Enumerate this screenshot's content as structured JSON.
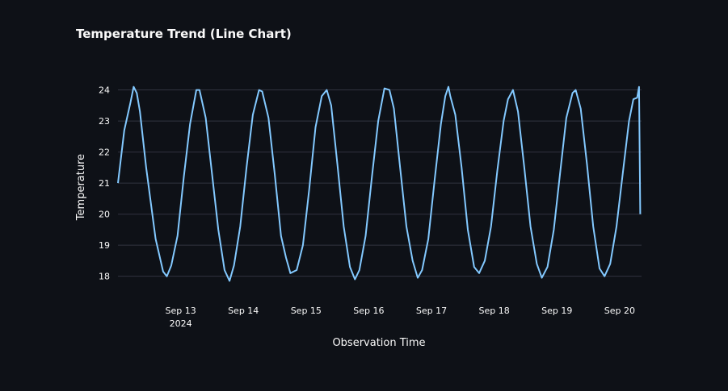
{
  "chart_data": {
    "type": "line",
    "title": "Temperature Trend (Line Chart)",
    "xlabel": "Observation Time",
    "ylabel": "Temperature",
    "ylim": [
      17.55,
      24.3
    ],
    "y_ticks": [
      18,
      19,
      20,
      21,
      22,
      23,
      24
    ],
    "x_range_days": [
      12.0,
      20.35
    ],
    "x_ticks": [
      {
        "day": 13,
        "label": "Sep 13",
        "sublabel": "2024"
      },
      {
        "day": 14,
        "label": "Sep 14",
        "sublabel": ""
      },
      {
        "day": 15,
        "label": "Sep 15",
        "sublabel": ""
      },
      {
        "day": 16,
        "label": "Sep 16",
        "sublabel": ""
      },
      {
        "day": 17,
        "label": "Sep 17",
        "sublabel": ""
      },
      {
        "day": 18,
        "label": "Sep 18",
        "sublabel": ""
      },
      {
        "day": 19,
        "label": "Sep 19",
        "sublabel": ""
      },
      {
        "day": 20,
        "label": "Sep 20",
        "sublabel": ""
      }
    ],
    "grid": true,
    "line_color": "#83c9ff",
    "series": [
      {
        "name": "Temperature",
        "points": [
          [
            12.0,
            21.0
          ],
          [
            12.1,
            22.7
          ],
          [
            12.2,
            23.6
          ],
          [
            12.25,
            24.1
          ],
          [
            12.3,
            23.9
          ],
          [
            12.35,
            23.3
          ],
          [
            12.45,
            21.5
          ],
          [
            12.6,
            19.2
          ],
          [
            12.72,
            18.15
          ],
          [
            12.78,
            18.0
          ],
          [
            12.85,
            18.35
          ],
          [
            12.95,
            19.3
          ],
          [
            13.05,
            21.2
          ],
          [
            13.15,
            22.9
          ],
          [
            13.25,
            24.0
          ],
          [
            13.3,
            24.0
          ],
          [
            13.4,
            23.1
          ],
          [
            13.5,
            21.3
          ],
          [
            13.6,
            19.5
          ],
          [
            13.7,
            18.2
          ],
          [
            13.78,
            17.85
          ],
          [
            13.85,
            18.35
          ],
          [
            13.95,
            19.6
          ],
          [
            14.05,
            21.5
          ],
          [
            14.15,
            23.2
          ],
          [
            14.25,
            24.0
          ],
          [
            14.3,
            23.95
          ],
          [
            14.4,
            23.1
          ],
          [
            14.5,
            21.3
          ],
          [
            14.6,
            19.3
          ],
          [
            14.68,
            18.6
          ],
          [
            14.75,
            18.1
          ],
          [
            14.85,
            18.2
          ],
          [
            14.95,
            19.0
          ],
          [
            15.05,
            20.8
          ],
          [
            15.15,
            22.8
          ],
          [
            15.25,
            23.8
          ],
          [
            15.33,
            24.0
          ],
          [
            15.4,
            23.5
          ],
          [
            15.5,
            21.6
          ],
          [
            15.6,
            19.6
          ],
          [
            15.7,
            18.3
          ],
          [
            15.78,
            17.9
          ],
          [
            15.85,
            18.2
          ],
          [
            15.95,
            19.3
          ],
          [
            16.05,
            21.2
          ],
          [
            16.15,
            23.0
          ],
          [
            16.25,
            24.05
          ],
          [
            16.33,
            24.0
          ],
          [
            16.4,
            23.4
          ],
          [
            16.5,
            21.5
          ],
          [
            16.6,
            19.6
          ],
          [
            16.7,
            18.5
          ],
          [
            16.78,
            17.95
          ],
          [
            16.85,
            18.2
          ],
          [
            16.95,
            19.2
          ],
          [
            17.05,
            21.1
          ],
          [
            17.15,
            22.9
          ],
          [
            17.22,
            23.8
          ],
          [
            17.27,
            24.1
          ],
          [
            17.3,
            23.8
          ],
          [
            17.38,
            23.2
          ],
          [
            17.48,
            21.5
          ],
          [
            17.58,
            19.5
          ],
          [
            17.68,
            18.3
          ],
          [
            17.76,
            18.1
          ],
          [
            17.85,
            18.5
          ],
          [
            17.95,
            19.6
          ],
          [
            18.05,
            21.4
          ],
          [
            18.15,
            23.0
          ],
          [
            18.22,
            23.7
          ],
          [
            18.3,
            24.0
          ],
          [
            18.38,
            23.3
          ],
          [
            18.48,
            21.5
          ],
          [
            18.58,
            19.6
          ],
          [
            18.68,
            18.4
          ],
          [
            18.76,
            17.95
          ],
          [
            18.85,
            18.3
          ],
          [
            18.95,
            19.5
          ],
          [
            19.05,
            21.3
          ],
          [
            19.15,
            23.1
          ],
          [
            19.25,
            23.9
          ],
          [
            19.3,
            24.0
          ],
          [
            19.38,
            23.4
          ],
          [
            19.48,
            21.6
          ],
          [
            19.58,
            19.6
          ],
          [
            19.68,
            18.25
          ],
          [
            19.76,
            18.0
          ],
          [
            19.85,
            18.4
          ],
          [
            19.95,
            19.6
          ],
          [
            20.05,
            21.3
          ],
          [
            20.15,
            23.0
          ],
          [
            20.22,
            23.7
          ],
          [
            20.28,
            23.75
          ],
          [
            20.31,
            24.1
          ],
          [
            20.33,
            20.0
          ]
        ]
      }
    ]
  }
}
